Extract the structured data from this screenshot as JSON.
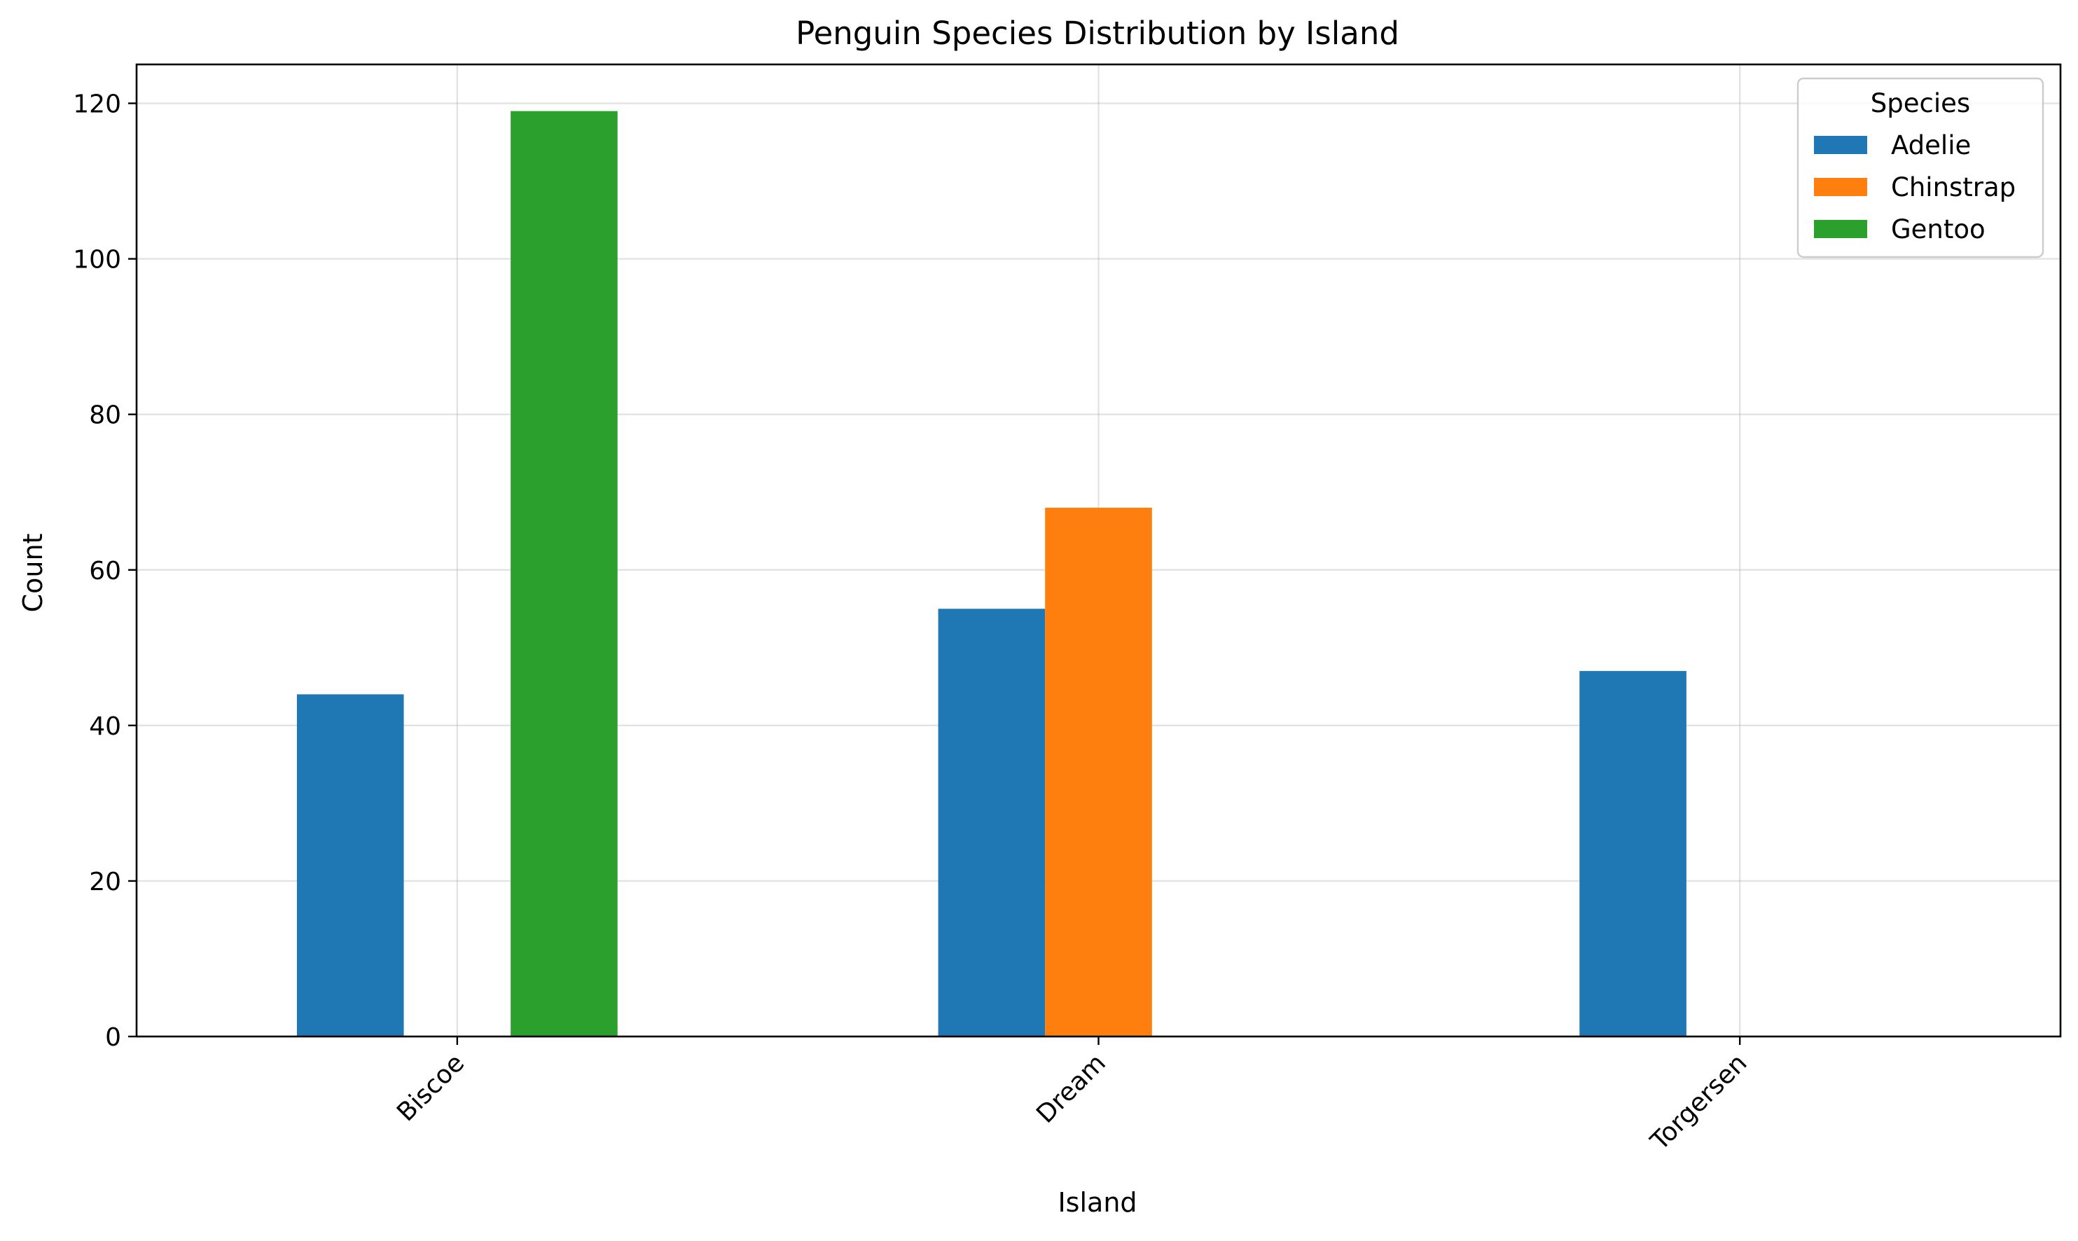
{
  "chart_data": {
    "type": "bar",
    "title": "Penguin Species Distribution by Island",
    "xlabel": "Island",
    "ylabel": "Count",
    "categories": [
      "Biscoe",
      "Dream",
      "Torgersen"
    ],
    "series": [
      {
        "name": "Adelie",
        "color": "#1f77b4",
        "values": [
          44,
          55,
          47
        ]
      },
      {
        "name": "Chinstrap",
        "color": "#ff7f0e",
        "values": [
          0,
          68,
          0
        ]
      },
      {
        "name": "Gentoo",
        "color": "#2ca02c",
        "values": [
          119,
          0,
          0
        ]
      }
    ],
    "ylim": [
      0,
      125
    ],
    "yticks": [
      0,
      20,
      40,
      60,
      80,
      100,
      120
    ],
    "ytick_labels": [
      "0",
      "20",
      "40",
      "60",
      "80",
      "100",
      "120"
    ],
    "xtick_rotation_deg": 45,
    "grid": true,
    "legend": {
      "title": "Species",
      "placement": "top-right"
    }
  }
}
